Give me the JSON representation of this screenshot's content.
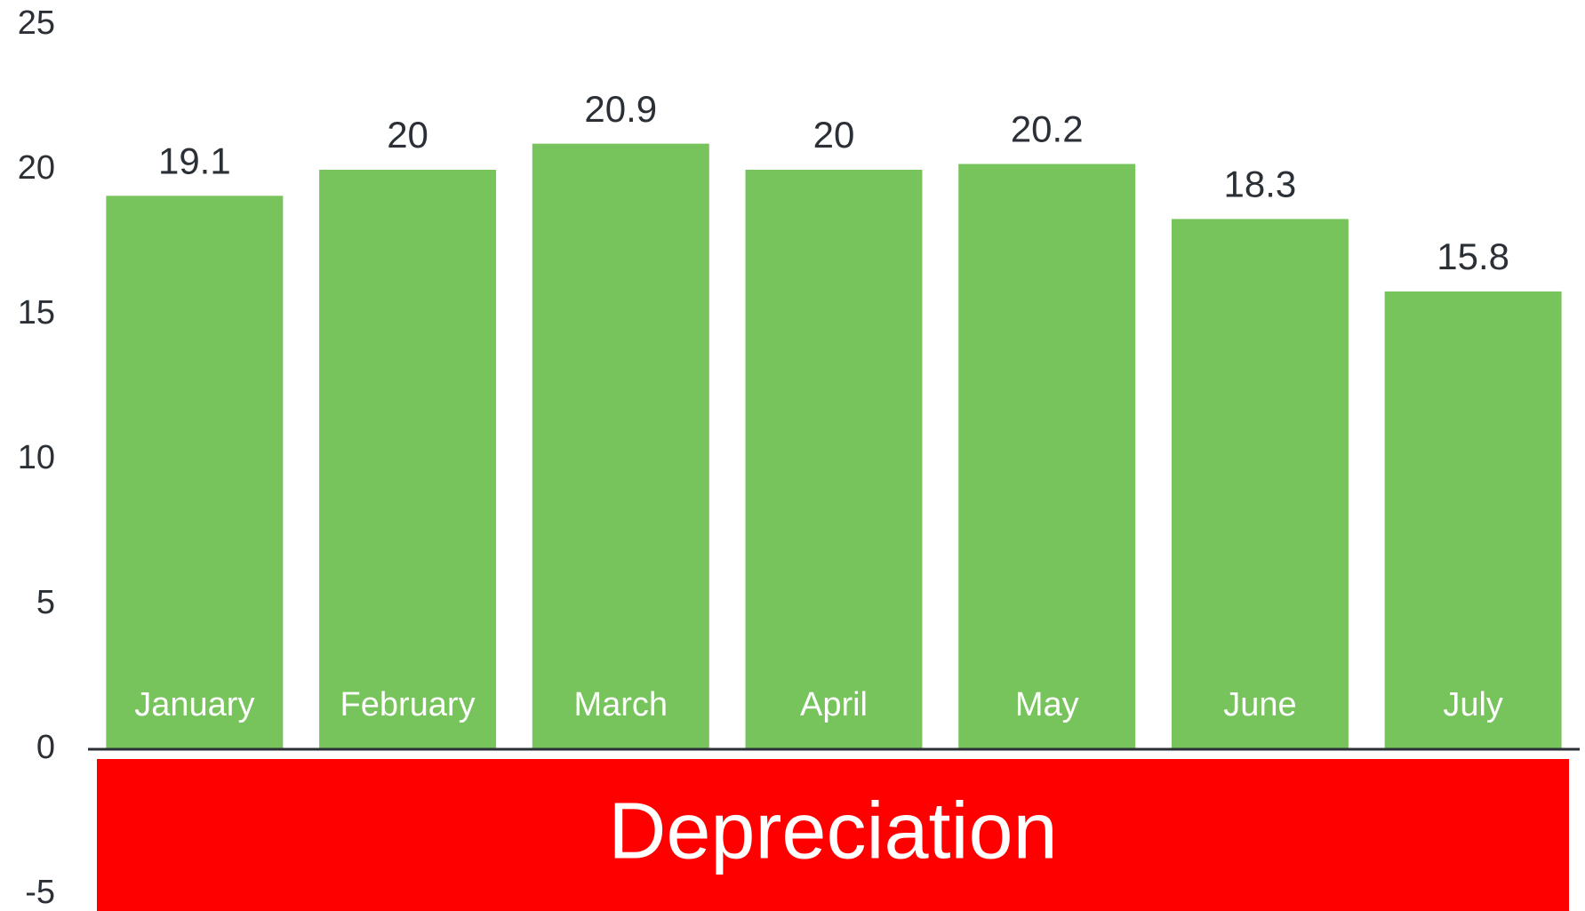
{
  "chart_data": {
    "type": "bar",
    "xlabel": "Depreciation",
    "categories": [
      "January",
      "February",
      "March",
      "April",
      "May",
      "June",
      "July"
    ],
    "values": [
      19.1,
      20,
      20.9,
      20,
      20.2,
      18.3,
      15.8
    ],
    "color": "#77c35c",
    "banner_color": "#ff0000",
    "ylim": [
      -5,
      25
    ],
    "yticks": [
      -5,
      0,
      5,
      10,
      15,
      20,
      25
    ],
    "grid": false
  }
}
